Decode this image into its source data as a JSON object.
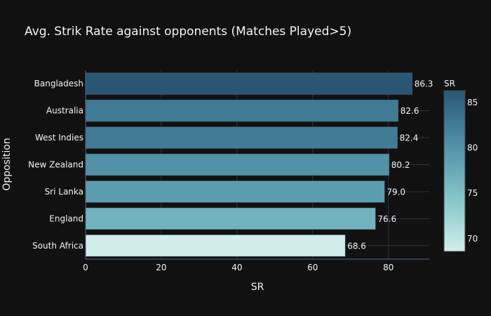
{
  "chart_data": {
    "type": "bar",
    "orientation": "horizontal",
    "title": "Avg. Strik Rate against opponents (Matches Played>5)",
    "xlabel": "SR",
    "ylabel": "Opposition",
    "categories": [
      "Bangladesh",
      "Australia",
      "West Indies",
      "New Zealand",
      "Sri Lanka",
      "England",
      "South Africa"
    ],
    "values": [
      86.3,
      82.6,
      82.4,
      80.2,
      79.0,
      76.6,
      68.6
    ],
    "data_labels": [
      "86.3",
      "82.6",
      "82.4",
      "80.2",
      "79.0",
      "76.6",
      "68.6"
    ],
    "xlim": [
      0,
      90.8
    ],
    "xticks": [
      0,
      20,
      40,
      60,
      80
    ],
    "grid": true,
    "colorbar": {
      "title": "SR",
      "range": [
        68.6,
        86.3
      ],
      "ticks": [
        70,
        75,
        80,
        85
      ],
      "colorscale": [
        "#d1eeea",
        "#a8dbd9",
        "#85c4c9",
        "#68abb8",
        "#4f90a6",
        "#3b738f",
        "#2a5674"
      ]
    },
    "background": "#111111",
    "text_color": "#f2f5fa"
  }
}
